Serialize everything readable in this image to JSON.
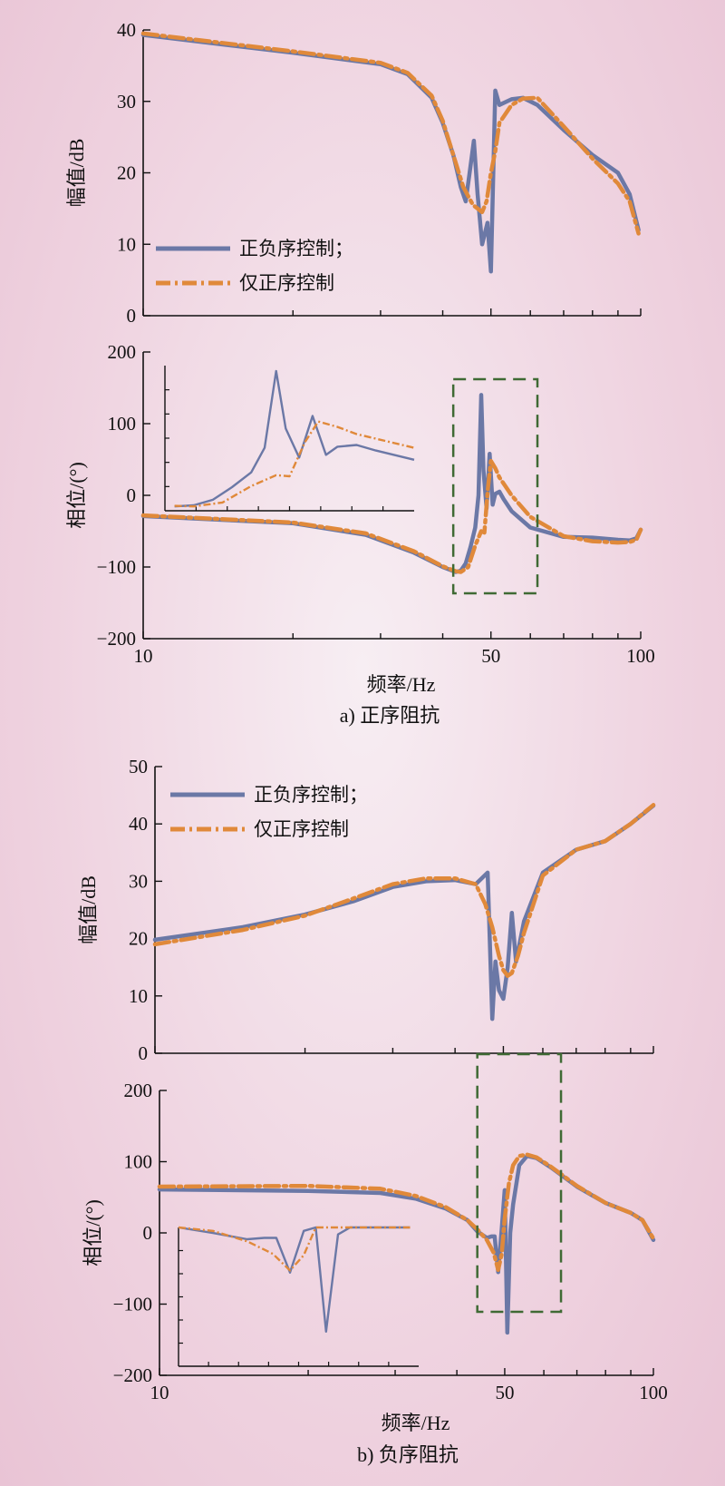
{
  "chart_data": [
    {
      "panel": "a-magnitude",
      "type": "line",
      "xscale": "log",
      "xlim": [
        10,
        100
      ],
      "ylim": [
        0,
        40
      ],
      "yticks": [
        0,
        10,
        20,
        30,
        40
      ],
      "ylabel": "幅值/dB",
      "legend": "bottom-left",
      "series": [
        {
          "name": "正负序控制；",
          "color": "#6b78a6",
          "style": "solid",
          "x": [
            10,
            20,
            30,
            34,
            38,
            40,
            42,
            43.5,
            44.5,
            45.3,
            46.2,
            47,
            48,
            48.6,
            49.2,
            50,
            51,
            52,
            55,
            58,
            62,
            70,
            80,
            90,
            95,
            99
          ],
          "y": [
            39.3,
            36.8,
            35.2,
            33.8,
            30.5,
            27,
            22.5,
            18,
            16,
            20,
            24.5,
            17,
            10,
            11.5,
            13,
            6.2,
            31.5,
            29.5,
            30.3,
            30.5,
            29.5,
            26,
            22.5,
            20,
            17,
            12
          ]
        },
        {
          "name": "仅正序控制",
          "color": "#e0893a",
          "style": "dashed",
          "x": [
            10,
            20,
            30,
            34,
            38,
            40,
            42,
            44,
            46,
            47,
            48,
            49,
            50,
            51,
            52,
            55,
            58,
            62,
            70,
            80,
            90,
            95,
            99
          ],
          "y": [
            39.5,
            37,
            35.4,
            34,
            30.8,
            27.3,
            22.5,
            18,
            15.5,
            15,
            14.5,
            16,
            20,
            23,
            27,
            29.5,
            30.4,
            30.5,
            26.5,
            22,
            18.5,
            16,
            11.5
          ]
        }
      ]
    },
    {
      "panel": "a-phase",
      "type": "line",
      "xscale": "log",
      "xlim": [
        10,
        100
      ],
      "ylim": [
        -200,
        200
      ],
      "yticks": [
        -200,
        -100,
        0,
        100,
        200
      ],
      "xticks": [
        10,
        50,
        100
      ],
      "ylabel": "相位/(°)",
      "xlabel": "频率/Hz",
      "series": [
        {
          "name": "正负序控制；",
          "color": "#6b78a6",
          "style": "solid",
          "x": [
            10,
            20,
            28,
            35,
            40,
            42.5,
            43.5,
            44.5,
            45.5,
            46.5,
            47.2,
            47.8,
            48.3,
            49,
            49.7,
            50.4,
            51,
            52,
            53,
            55,
            60,
            70,
            80,
            90,
            95,
            98,
            100
          ],
          "y": [
            -29,
            -39,
            -55,
            -80,
            -100,
            -107,
            -105,
            -95,
            -72,
            -45,
            0,
            140,
            35,
            -18,
            58,
            -13,
            2,
            5,
            -5,
            -22,
            -45,
            -58,
            -59,
            -62,
            -63,
            -60,
            -48
          ]
        },
        {
          "name": "仅正序控制",
          "color": "#e0893a",
          "style": "dashed",
          "x": [
            10,
            20,
            28,
            35,
            40,
            42.5,
            43.5,
            45,
            46.5,
            47.8,
            48.5,
            49.3,
            50,
            51,
            52,
            55,
            60,
            70,
            80,
            90,
            95,
            98,
            100
          ],
          "y": [
            -28,
            -38,
            -53,
            -78,
            -99,
            -106,
            -107,
            -100,
            -70,
            -50,
            -52,
            10,
            48,
            38,
            25,
            0,
            -30,
            -57,
            -64,
            -66,
            -65,
            -62,
            -48
          ]
        }
      ],
      "inset": {
        "xlim": [
          42,
          55
        ],
        "ylim": [
          -115,
          150
        ]
      }
    },
    {
      "panel": "b-magnitude",
      "type": "line",
      "xscale": "log",
      "xlim": [
        10,
        100
      ],
      "ylim": [
        0,
        50
      ],
      "yticks": [
        0,
        10,
        20,
        30,
        40,
        50
      ],
      "ylabel": "幅值/dB",
      "legend": "top-left",
      "series": [
        {
          "name": "正负序控制；",
          "color": "#6b78a6",
          "style": "solid",
          "x": [
            10,
            15,
            20,
            25,
            30,
            35,
            40,
            44,
            46.5,
            47.5,
            48.2,
            49,
            50,
            51,
            52,
            53,
            55,
            60,
            70,
            80,
            90,
            100
          ],
          "y": [
            19.8,
            22,
            24.2,
            26.5,
            29,
            30,
            30.2,
            29.5,
            31.5,
            6,
            16,
            11,
            9.5,
            15,
            24.5,
            16,
            23,
            31.5,
            35.5,
            37,
            40,
            43.2
          ]
        },
        {
          "name": "仅正序控制",
          "color": "#e0893a",
          "style": "dashed",
          "x": [
            10,
            15,
            20,
            25,
            30,
            35,
            40,
            44,
            46,
            47.5,
            49,
            50,
            51,
            52,
            53.5,
            55,
            60,
            70,
            80,
            90,
            100
          ],
          "y": [
            19,
            21.5,
            24,
            27,
            29.5,
            30.5,
            30.5,
            29.5,
            26,
            22,
            17,
            14.5,
            13.5,
            14,
            17,
            21,
            31,
            35.5,
            37,
            40,
            43.3
          ]
        }
      ]
    },
    {
      "panel": "b-phase",
      "type": "line",
      "xscale": "log",
      "xlim": [
        10,
        100
      ],
      "ylim": [
        -200,
        200
      ],
      "yticks": [
        -200,
        -100,
        0,
        100,
        200
      ],
      "xticks": [
        10,
        50,
        100
      ],
      "ylabel": "相位/(°)",
      "xlabel": "频率/Hz",
      "series": [
        {
          "name": "正负序控制；",
          "color": "#6b78a6",
          "style": "solid",
          "x": [
            10,
            20,
            28,
            33,
            38,
            42,
            44,
            46,
            47,
            47.7,
            48.5,
            49.3,
            50,
            50.6,
            51.3,
            52,
            53.5,
            55.5,
            58,
            62,
            70,
            80,
            90,
            95,
            100
          ],
          "y": [
            61,
            59,
            56,
            48,
            34,
            18,
            2,
            -7,
            -5,
            -5,
            -55,
            5,
            60,
            -140,
            0,
            40,
            95,
            108,
            105,
            92,
            65,
            42,
            28,
            18,
            -10
          ]
        },
        {
          "name": "仅正序控制",
          "color": "#e0893a",
          "style": "dashed",
          "x": [
            10,
            20,
            28,
            33,
            38,
            42,
            44,
            46,
            47.5,
            48.5,
            49.3,
            50,
            51,
            52,
            53.5,
            55.5,
            58,
            62,
            70,
            80,
            90,
            95,
            100
          ],
          "y": [
            65,
            66,
            62,
            52,
            36,
            18,
            5,
            -10,
            -28,
            -52,
            -30,
            20,
            70,
            95,
            108,
            110,
            106,
            93,
            66,
            42,
            28,
            18,
            -8
          ]
        }
      ],
      "inset": {
        "xlim": [
          42,
          56
        ],
        "ylim": [
          -190,
          10
        ]
      }
    }
  ],
  "captions": {
    "a": "a) 正序阻抗",
    "b": "b) 负序阻抗"
  }
}
